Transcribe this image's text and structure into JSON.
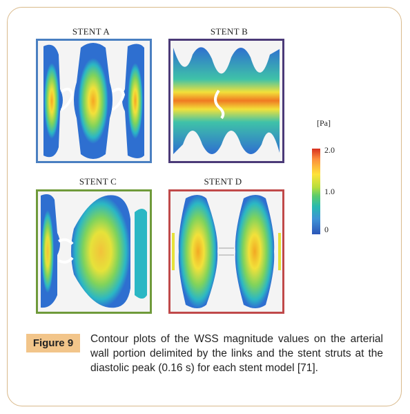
{
  "panels": [
    {
      "id": "a",
      "title": "STENT A",
      "frame_color": "#4a7fc1"
    },
    {
      "id": "b",
      "title": "STENT B",
      "frame_color": "#4b3a78"
    },
    {
      "id": "c",
      "title": "STENT C",
      "frame_color": "#6f9a3a"
    },
    {
      "id": "d",
      "title": "STENT D",
      "frame_color": "#c0494a"
    }
  ],
  "legend": {
    "unit": "[Pa]",
    "ticks": [
      "2.0",
      "1.0",
      "0"
    ],
    "colors": [
      "#d7301f",
      "#fee33a",
      "#5ccc6b",
      "#27b9b0",
      "#2c56b8"
    ]
  },
  "figure": {
    "label": "Figure 9",
    "caption": "Contour plots of the WSS magnitude values on the arterial wall portion delimited by the links and the stent struts at the diastolic peak (0.16 s) for each stent model [71]."
  }
}
